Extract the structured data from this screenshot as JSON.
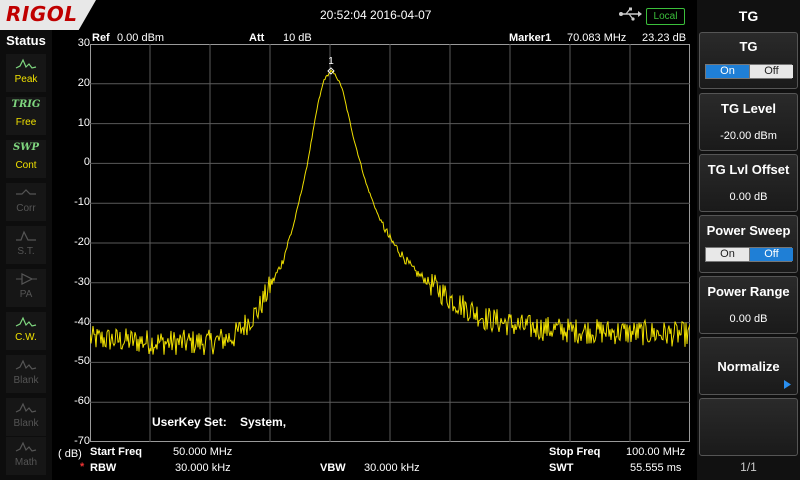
{
  "header": {
    "logo": "RIGOL",
    "datetime": "20:52:04 2016-04-07",
    "local_badge": "Local"
  },
  "status": {
    "title": "Status",
    "items": [
      {
        "icon": "peak-icon",
        "label": "Peak",
        "state": "on"
      },
      {
        "icon": "TRIG",
        "label": "Free",
        "state": "on"
      },
      {
        "icon": "SWP",
        "label": "Cont",
        "state": "sweep"
      },
      {
        "icon": "corr-icon",
        "label": "Corr",
        "state": "off"
      },
      {
        "icon": "st-icon",
        "label": "S.T.",
        "state": "off"
      },
      {
        "icon": "pa-icon",
        "label": "PA",
        "state": "off"
      },
      {
        "icon": "cw-icon",
        "label": "C.W.",
        "state": "on"
      },
      {
        "icon": "blank-icon",
        "label": "Blank",
        "state": "off"
      },
      {
        "icon": "blank-icon",
        "label": "Blank",
        "state": "off"
      },
      {
        "icon": "math-icon",
        "label": "Math",
        "state": "off"
      }
    ]
  },
  "plot_header": {
    "ref_label": "Ref",
    "ref_value": "0.00 dBm",
    "att_label": "Att",
    "att_value": "10 dB",
    "marker_label": "Marker1",
    "marker_freq": "70.083 MHz",
    "marker_level": "23.23 dB"
  },
  "plot_footer": {
    "unit": "( dB)",
    "start_label": "Start Freq",
    "start_value": "50.000 MHz",
    "stop_label": "Stop Freq",
    "stop_value": "100.00 MHz",
    "rbw_marker": "*",
    "rbw_label": "RBW",
    "rbw_value": "30.000 kHz",
    "vbw_label": "VBW",
    "vbw_value": "30.000 kHz",
    "swt_label": "SWT",
    "swt_value": "55.555 ms"
  },
  "userkey": {
    "label": "UserKey Set:",
    "value": "System,"
  },
  "chart_data": {
    "type": "line",
    "yticks": [
      "30",
      "20",
      "10",
      "0",
      "-10",
      "-20",
      "-30",
      "-40",
      "-50",
      "-60",
      "-70"
    ],
    "ylim": [
      -70,
      30
    ],
    "xlim": [
      50,
      100
    ],
    "grid": true,
    "marker": {
      "label": "1",
      "x": 70.083,
      "y": 23.23
    },
    "series": [
      {
        "color": "#f0e000",
        "x": [
          50,
          56,
          60,
          62,
          64,
          66,
          67,
          68,
          69,
          69.5,
          70.083,
          70.5,
          71,
          72,
          73,
          74,
          75,
          77,
          80,
          83,
          86,
          90,
          95,
          100
        ],
        "values": [
          -44,
          -45,
          -45,
          -43.5,
          -37,
          -25,
          -15,
          -2,
          15,
          21,
          23.23,
          22,
          19,
          6,
          -5,
          -13,
          -19,
          -27,
          -34,
          -39,
          -41,
          -42,
          -42.5,
          -43
        ]
      }
    ]
  },
  "menu": {
    "title": "TG",
    "tg": {
      "label": "TG",
      "on": "On",
      "off": "Off",
      "selected": "on"
    },
    "tg_level": {
      "label": "TG Level",
      "value": "-20.00 dBm"
    },
    "tg_offset": {
      "label": "TG Lvl Offset",
      "value": "0.00 dB"
    },
    "power_sweep": {
      "label": "Power Sweep",
      "on": "On",
      "off": "Off",
      "selected": "off"
    },
    "power_range": {
      "label": "Power Range",
      "value": "0.00 dB"
    },
    "normalize": {
      "label": "Normalize"
    },
    "page": "1/1"
  }
}
